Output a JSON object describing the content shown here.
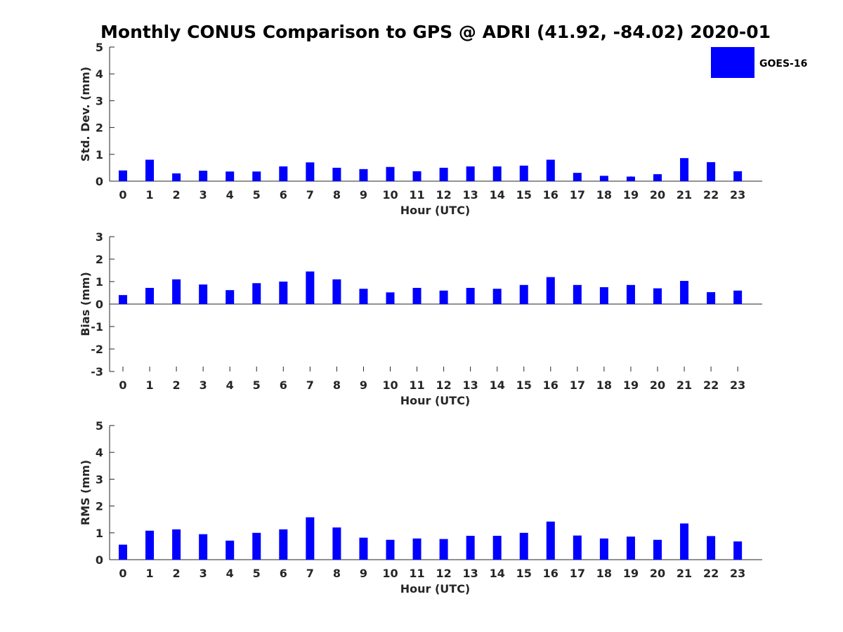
{
  "figure": {
    "title": "Monthly CONUS Comparison to GPS @ ADRI (41.92, -84.02) 2020-01"
  },
  "legend": {
    "label": "GOES-16",
    "color": "#0000ff",
    "placement": "top-right"
  },
  "chart_data": [
    {
      "type": "bar",
      "name": "std-dev",
      "ylabel": "Std. Dev. (mm)",
      "xlabel": "Hour (UTC)",
      "ylim": [
        0,
        5
      ],
      "yticks": [
        0,
        1,
        2,
        3,
        4,
        5
      ],
      "grid": false,
      "categories": [
        "0",
        "1",
        "2",
        "3",
        "4",
        "5",
        "6",
        "7",
        "8",
        "9",
        "10",
        "11",
        "12",
        "13",
        "14",
        "15",
        "16",
        "17",
        "18",
        "19",
        "20",
        "21",
        "22",
        "23"
      ],
      "series": [
        {
          "name": "GOES-16",
          "color": "#0000ff",
          "values": [
            0.4,
            0.8,
            0.29,
            0.39,
            0.36,
            0.36,
            0.55,
            0.7,
            0.5,
            0.45,
            0.53,
            0.37,
            0.5,
            0.55,
            0.55,
            0.58,
            0.8,
            0.31,
            0.2,
            0.17,
            0.26,
            0.86,
            0.71,
            0.37
          ]
        }
      ]
    },
    {
      "type": "bar",
      "name": "bias",
      "ylabel": "Bias (mm)",
      "xlabel": "Hour (UTC)",
      "ylim": [
        -3,
        3
      ],
      "yticks": [
        -3,
        -2,
        -1,
        0,
        1,
        2,
        3
      ],
      "grid": false,
      "categories": [
        "0",
        "1",
        "2",
        "3",
        "4",
        "5",
        "6",
        "7",
        "8",
        "9",
        "10",
        "11",
        "12",
        "13",
        "14",
        "15",
        "16",
        "17",
        "18",
        "19",
        "20",
        "21",
        "22",
        "23"
      ],
      "series": [
        {
          "name": "GOES-16",
          "color": "#0000ff",
          "values": [
            0.4,
            0.72,
            1.1,
            0.87,
            0.62,
            0.93,
            1.0,
            1.45,
            1.1,
            0.68,
            0.52,
            0.72,
            0.6,
            0.72,
            0.68,
            0.85,
            1.2,
            0.85,
            0.75,
            0.85,
            0.7,
            1.03,
            0.53,
            0.6
          ]
        }
      ]
    },
    {
      "type": "bar",
      "name": "rms",
      "ylabel": "RMS (mm)",
      "xlabel": "Hour (UTC)",
      "ylim": [
        0,
        5
      ],
      "yticks": [
        0,
        1,
        2,
        3,
        4,
        5
      ],
      "grid": false,
      "categories": [
        "0",
        "1",
        "2",
        "3",
        "4",
        "5",
        "6",
        "7",
        "8",
        "9",
        "10",
        "11",
        "12",
        "13",
        "14",
        "15",
        "16",
        "17",
        "18",
        "19",
        "20",
        "21",
        "22",
        "23"
      ],
      "series": [
        {
          "name": "GOES-16",
          "color": "#0000ff",
          "values": [
            0.56,
            1.08,
            1.13,
            0.95,
            0.71,
            1.0,
            1.13,
            1.58,
            1.2,
            0.82,
            0.74,
            0.79,
            0.77,
            0.89,
            0.89,
            1.0,
            1.42,
            0.9,
            0.79,
            0.86,
            0.74,
            1.35,
            0.88,
            0.68
          ]
        }
      ]
    }
  ]
}
